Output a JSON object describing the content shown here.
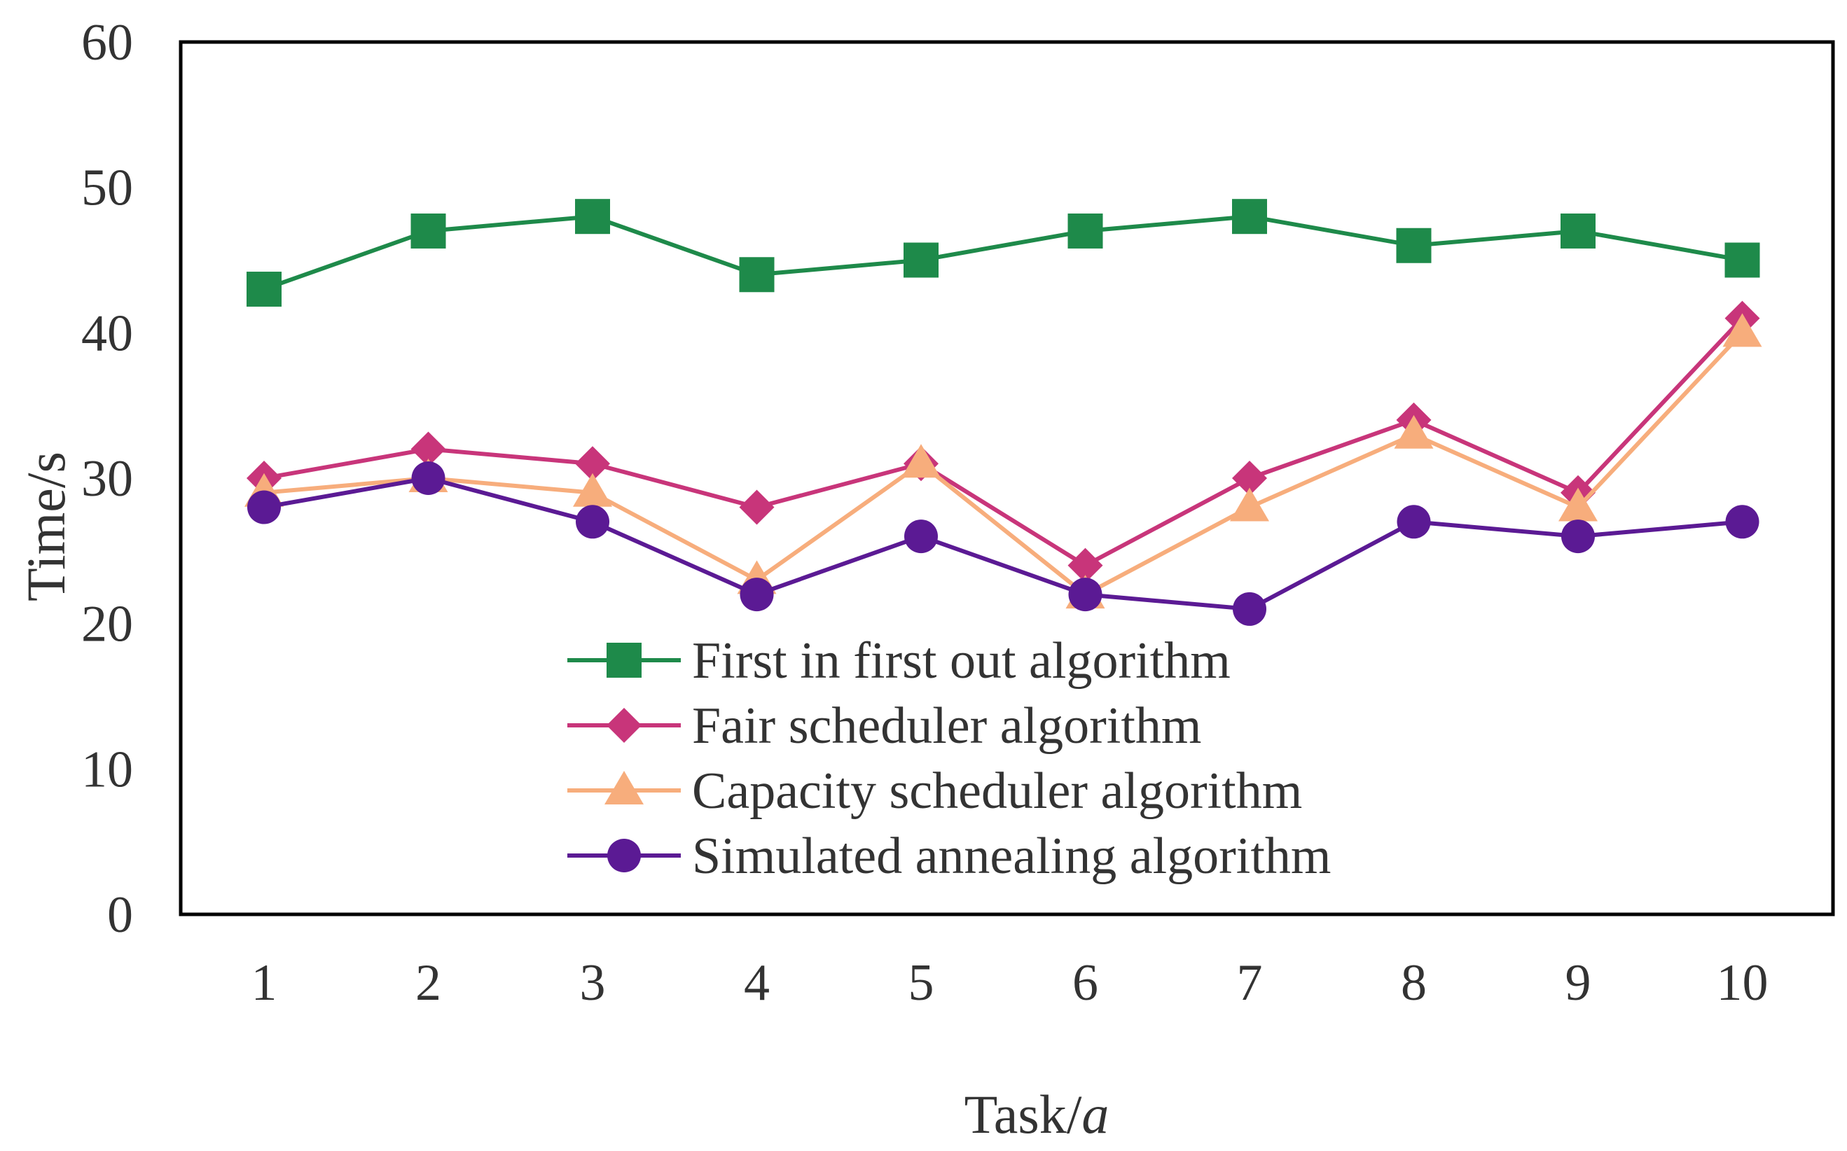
{
  "chart_data": {
    "type": "line",
    "title": "",
    "xlabel": "Task/",
    "xlabel_italic": "a",
    "ylabel": "Time/s",
    "x": [
      "1",
      "2",
      "3",
      "4",
      "5",
      "6",
      "7",
      "8",
      "9",
      "10"
    ],
    "ylim": [
      0,
      60
    ],
    "yticks": [
      "0",
      "10",
      "20",
      "30",
      "40",
      "50",
      "60"
    ],
    "grid": false,
    "legend_position": "bottom-center",
    "series": [
      {
        "name": "First in first out algorithm",
        "color": "#1e8a4a",
        "marker": "square",
        "values": [
          43,
          47,
          48,
          44,
          45,
          47,
          48,
          46,
          47,
          45
        ]
      },
      {
        "name": "Fair scheduler algorithm",
        "color": "#c8357a",
        "marker": "diamond",
        "values": [
          30,
          32,
          31,
          28,
          31,
          24,
          30,
          34,
          29,
          41
        ]
      },
      {
        "name": "Capacity scheduler algorithm",
        "color": "#f7ad7c",
        "marker": "triangle",
        "values": [
          29,
          30,
          29,
          23,
          31,
          22,
          28,
          33,
          28,
          40
        ]
      },
      {
        "name": "Simulated annealing algorithm",
        "color": "#5b1a94",
        "marker": "circle",
        "values": [
          28,
          30,
          27,
          22,
          26,
          22,
          21,
          27,
          26,
          27
        ]
      }
    ]
  }
}
